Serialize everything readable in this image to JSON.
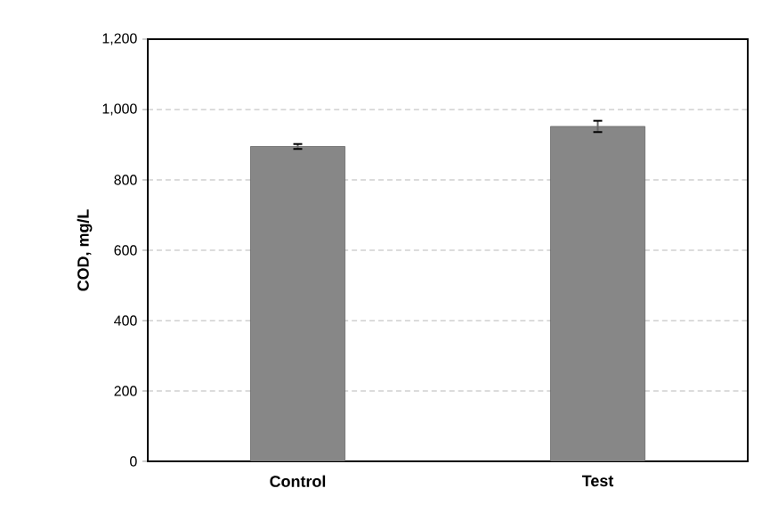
{
  "chart_data": {
    "type": "bar",
    "ylabel": "COD, mg/L",
    "categories": [
      "Control",
      "Test"
    ],
    "values": [
      895,
      952
    ],
    "errors": [
      7,
      16
    ],
    "color": "#878787",
    "ylim": [
      0,
      1200
    ],
    "yticks": [
      {
        "value": 0,
        "label": "0"
      },
      {
        "value": 200,
        "label": "200"
      },
      {
        "value": 400,
        "label": "400"
      },
      {
        "value": 600,
        "label": "600"
      },
      {
        "value": 800,
        "label": "800"
      },
      {
        "value": 1000,
        "label": "1,000"
      },
      {
        "value": 1200,
        "label": "1,200"
      }
    ],
    "grid": "y"
  }
}
